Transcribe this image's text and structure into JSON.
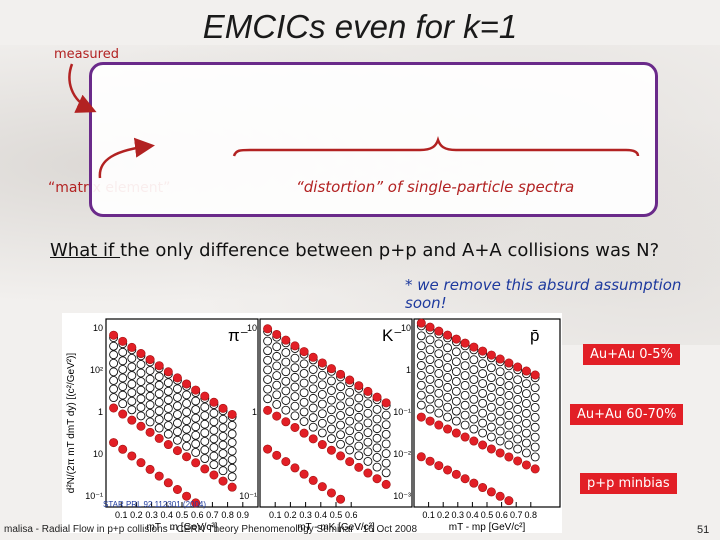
{
  "slide": {
    "title": "EMCICs even for k=1",
    "measured_label": "measured",
    "matrix_label": "“matrix element”",
    "distortion_label": "“distortion” of single-particle spectra",
    "question_prefix": "What if ",
    "question_rest": "the only difference between p+p and A+A collisions was N?",
    "note": "* we remove this absurd assumption soon!",
    "reference": "STAR PRL 92 112301 (2004)",
    "footer": "malisa - Radial Flow in p+p collisions - CERN Theory Phenomenology Seminar - 16 Oct 2008",
    "page_number": "51"
  },
  "legend": {
    "central": "Au+Au 0-5%",
    "peripheral": "Au+Au 60-70%",
    "pp": "p+p minbias"
  },
  "colors": {
    "red": "#e21f26",
    "open": "#111111",
    "box": "#6a2a8a",
    "accent": "#b22222"
  },
  "chart_data": [
    {
      "type": "scatter",
      "particle": "π⁻",
      "ylabel": "d²N/(2π mT dmT dy) [(c²/GeV²)]",
      "xlabel": "mT - m [GeV/c²]",
      "log_y": true,
      "xlim": [
        0.0,
        1.0
      ],
      "ylim": [
        0.03,
        2000
      ],
      "x_ticks": [
        "0.1",
        "0.2",
        "0.3",
        "0.4",
        "0.5",
        "0.6",
        "0.7",
        "0.8",
        "0.9"
      ],
      "y_ticks": [
        "10",
        "10²",
        "1",
        "10",
        "10⁻¹"
      ],
      "series_open_count": 8,
      "top": 900,
      "slope": 6.0
    },
    {
      "type": "scatter",
      "particle": "K⁻",
      "xlabel": "mT - mK [GeV/c²]",
      "log_y": true,
      "xlim": [
        0.0,
        1.0
      ],
      "ylim": [
        0.003,
        60
      ],
      "x_ticks": [
        "0.1",
        "0.2",
        "0.3",
        "0.4",
        "0.5",
        "0.6"
      ],
      "y_ticks": [
        "10",
        "1",
        "10⁻¹"
      ],
      "series_open_count": 8,
      "top": 40,
      "slope": 5.0
    },
    {
      "type": "scatter",
      "particle": "p̄",
      "xlabel": "mT - mp [GeV/c²]",
      "log_y": true,
      "xlim": [
        0.0,
        1.0
      ],
      "ylim": [
        0.0008,
        12
      ],
      "x_ticks": [
        "0.1",
        "0.2",
        "0.3",
        "0.4",
        "0.5",
        "0.6",
        "0.7",
        "0.8"
      ],
      "y_ticks": [
        "10",
        "1",
        "10⁻¹",
        "10⁻²",
        "10⁻³"
      ],
      "series_open_count": 9,
      "top": 10,
      "slope": 3.4
    }
  ]
}
